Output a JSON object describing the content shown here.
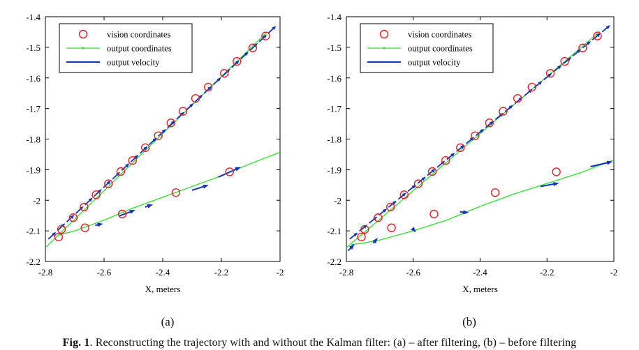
{
  "colors": {
    "vision": "#e0242a",
    "output_coords": "#33dd33",
    "output_velocity": "#1533b8",
    "axis": "#000000"
  },
  "chart_data": [
    {
      "type": "line",
      "panel_label": "(a)",
      "xlabel": "X, meters",
      "ylabel": "",
      "xlim": [
        -2.8,
        -2.0
      ],
      "ylim": [
        -2.2,
        -1.4
      ],
      "xticks": [
        -2.8,
        -2.6,
        -2.4,
        -2.2,
        -2.0
      ],
      "xtick_labels": [
        "-2.8",
        "-2.6",
        "-2.4",
        "-2.2",
        "-2"
      ],
      "yticks": [
        -2.2,
        -2.1,
        -2.0,
        -1.9,
        -1.8,
        -1.7,
        -1.6,
        -1.5,
        -1.4
      ],
      "ytick_labels": [
        "-2.2",
        "-2.1",
        "-2",
        "-1.9",
        "-1.8",
        "-1.7",
        "-1.6",
        "-1.5",
        "-1.4"
      ],
      "y_inverted": false,
      "legend_position": "top-left",
      "series": [
        {
          "name": "vision coordinates",
          "style": "circle",
          "x": [
            -2.755,
            -2.745,
            -2.705,
            -2.668,
            -2.627,
            -2.585,
            -2.543,
            -2.503,
            -2.459,
            -2.415,
            -2.372,
            -2.331,
            -2.288,
            -2.245,
            -2.19,
            -2.147,
            -2.093,
            -2.049,
            -2.665,
            -2.538,
            -2.355,
            -2.172
          ],
          "y": [
            -2.12,
            -2.095,
            -2.057,
            -2.022,
            -1.982,
            -1.946,
            -1.906,
            -1.87,
            -1.828,
            -1.789,
            -1.747,
            -1.709,
            -1.667,
            -1.63,
            -1.585,
            -1.546,
            -1.502,
            -1.463,
            -2.09,
            -2.045,
            -1.975,
            -1.907
          ]
        },
        {
          "name": "output coordinates",
          "style": "line",
          "lines": [
            {
              "x": [
                -2.8,
                -2.042
              ],
              "y": [
                -2.155,
                -1.448
              ]
            },
            {
              "x": [
                -2.76,
                -2.7,
                -2.6,
                -2.5,
                -2.4,
                -2.3,
                -2.2,
                -2.1,
                -2.0
              ],
              "y": [
                -2.115,
                -2.1,
                -2.065,
                -2.025,
                -1.99,
                -1.955,
                -1.92,
                -1.88,
                -1.843
              ]
            }
          ]
        },
        {
          "name": "output velocity",
          "style": "arrow",
          "lines": [
            {
              "x": [
                -2.79,
                -2.0
              ],
              "y": [
                -2.127,
                -1.418
              ]
            },
            {
              "x": [
                -2.63,
                -2.61
              ],
              "y": [
                -2.082,
                -2.078
              ]
            },
            {
              "x": [
                -2.55,
                -2.5
              ],
              "y": [
                -2.052,
                -2.034
              ]
            },
            {
              "x": [
                -2.46,
                -2.44
              ],
              "y": [
                -2.022,
                -2.016
              ]
            },
            {
              "x": [
                -2.3,
                -2.25
              ],
              "y": [
                -1.967,
                -1.952
              ]
            },
            {
              "x": [
                -2.21,
                -2.14
              ],
              "y": [
                -1.924,
                -1.894
              ]
            }
          ]
        }
      ]
    },
    {
      "type": "line",
      "panel_label": "(b)",
      "xlabel": "X, meters",
      "ylabel": "",
      "xlim": [
        -2.8,
        -2.0
      ],
      "ylim": [
        -2.2,
        -1.4
      ],
      "xticks": [
        -2.8,
        -2.6,
        -2.4,
        -2.2,
        -2.0
      ],
      "xtick_labels": [
        "-2.8",
        "-2.6",
        "-2.4",
        "-2.2",
        "-2"
      ],
      "yticks": [
        -2.2,
        -2.1,
        -2.0,
        -1.9,
        -1.8,
        -1.7,
        -1.6,
        -1.5,
        -1.4
      ],
      "ytick_labels": [
        "-2.2",
        "-2.1",
        "-2",
        "-1.9",
        "-1.8",
        "-1.7",
        "-1.6",
        "-1.5",
        "-1.4"
      ],
      "y_inverted": false,
      "legend_position": "top-left",
      "series": [
        {
          "name": "vision coordinates",
          "style": "circle",
          "x": [
            -2.755,
            -2.745,
            -2.705,
            -2.668,
            -2.627,
            -2.585,
            -2.543,
            -2.503,
            -2.459,
            -2.415,
            -2.372,
            -2.331,
            -2.288,
            -2.245,
            -2.19,
            -2.147,
            -2.093,
            -2.049,
            -2.665,
            -2.538,
            -2.355,
            -2.172
          ],
          "y": [
            -2.12,
            -2.095,
            -2.057,
            -2.022,
            -1.982,
            -1.946,
            -1.906,
            -1.87,
            -1.828,
            -1.789,
            -1.747,
            -1.709,
            -1.667,
            -1.63,
            -1.585,
            -1.546,
            -1.502,
            -1.463,
            -2.09,
            -2.045,
            -1.975,
            -1.907
          ]
        },
        {
          "name": "output coordinates",
          "style": "line",
          "lines": [
            {
              "x": [
                -2.8,
                -2.042
              ],
              "y": [
                -2.155,
                -1.448
              ]
            },
            {
              "x": [
                -2.785,
                -2.75,
                -2.7,
                -2.6,
                -2.5,
                -2.4,
                -2.3,
                -2.2,
                -2.1,
                -2.0
              ],
              "y": [
                -2.145,
                -2.14,
                -2.13,
                -2.1,
                -2.065,
                -2.02,
                -1.98,
                -1.945,
                -1.91,
                -1.868
              ]
            }
          ]
        },
        {
          "name": "output velocity",
          "style": "arrow",
          "lines": [
            {
              "x": [
                -2.79,
                -2.0
              ],
              "y": [
                -2.127,
                -1.418
              ]
            },
            {
              "x": [
                -2.795,
                -2.78
              ],
              "y": [
                -2.165,
                -2.148
              ]
            },
            {
              "x": [
                -2.72,
                -2.71
              ],
              "y": [
                -2.14,
                -2.128
              ]
            },
            {
              "x": [
                -2.6,
                -2.596
              ],
              "y": [
                -2.095,
                -2.1
              ]
            },
            {
              "x": [
                -2.46,
                -2.44
              ],
              "y": [
                -2.038,
                -2.04
              ]
            },
            {
              "x": [
                -2.22,
                -2.17
              ],
              "y": [
                -1.955,
                -1.945
              ]
            },
            {
              "x": [
                -2.07,
                -2.01
              ],
              "y": [
                -1.89,
                -1.875
              ]
            }
          ]
        }
      ]
    }
  ],
  "caption": {
    "label": "Fig. 1",
    "text": "Reconstructing the trajectory with and without the Kalman filter: (a) – after filtering, (b) – before filtering"
  }
}
